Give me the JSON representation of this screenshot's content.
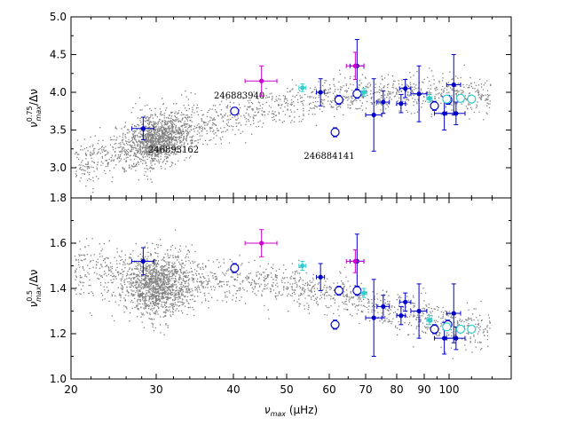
{
  "chart_data": [
    {
      "panel": "top",
      "type": "scatter",
      "title": "",
      "ylabel_main": "ν",
      "ylabel_sup": "0.75",
      "ylabel_sub": "max",
      "ylabel_tail": "/Δν",
      "ylim": [
        2.7,
        5.0
      ],
      "yticks": [
        3.0,
        3.5,
        4.0,
        4.5,
        5.0
      ],
      "ytick_labels": [
        "3.0",
        "3.5",
        "4.0",
        "4.5",
        "5.0"
      ],
      "bottom_label": "1.8",
      "annotations": [
        {
          "text": "246883940",
          "x": 41,
          "y": 3.92
        },
        {
          "text": "246893162",
          "x": 32,
          "y": 3.2
        },
        {
          "text": "246884141",
          "x": 60,
          "y": 3.12
        }
      ],
      "background": {
        "name": "field stars",
        "color": "#808080",
        "x_range": [
          20,
          120
        ],
        "peak_x": 30,
        "curve": [
          [
            20,
            3.05
          ],
          [
            25,
            3.25
          ],
          [
            30,
            3.38
          ],
          [
            35,
            3.55
          ],
          [
            40,
            3.68
          ],
          [
            50,
            3.85
          ],
          [
            60,
            3.95
          ],
          [
            80,
            3.98
          ],
          [
            100,
            4.0
          ],
          [
            115,
            3.95
          ]
        ]
      },
      "series": [
        {
          "name": "blue filled",
          "marker": "filled",
          "color": "#0000cc",
          "points": [
            {
              "x": 28.2,
              "y": 3.52,
              "xerr": 1.5,
              "yerr": 0.15
            },
            {
              "x": 57.8,
              "y": 4.0,
              "xerr": 1.0,
              "yerr": 0.18
            },
            {
              "x": 67.5,
              "y": 4.35,
              "xerr": 2.0,
              "yerr": 0.35
            },
            {
              "x": 72.5,
              "y": 3.7,
              "xerr": 2.5,
              "yerr": 0.48
            },
            {
              "x": 75.5,
              "y": 3.87,
              "xerr": 2.0,
              "yerr": 0.15
            },
            {
              "x": 81.5,
              "y": 3.85,
              "xerr": 1.5,
              "yerr": 0.12
            },
            {
              "x": 83.0,
              "y": 4.05,
              "xerr": 2.0,
              "yerr": 0.12
            },
            {
              "x": 88.0,
              "y": 3.98,
              "xerr": 3.0,
              "yerr": 0.37
            },
            {
              "x": 98.0,
              "y": 3.72,
              "xerr": 4.0,
              "yerr": 0.22
            },
            {
              "x": 102.0,
              "y": 4.1,
              "xerr": 3.0,
              "yerr": 0.4
            },
            {
              "x": 103.0,
              "y": 3.72,
              "xerr": 4.0,
              "yerr": 0.15
            }
          ]
        },
        {
          "name": "blue open",
          "marker": "open",
          "color": "#0000cc",
          "points": [
            {
              "x": 40.2,
              "y": 3.75,
              "xerr": 0.5,
              "yerr": 0.05
            },
            {
              "x": 61.5,
              "y": 3.47,
              "xerr": 0.8,
              "yerr": 0.06
            },
            {
              "x": 62.5,
              "y": 3.9,
              "xerr": 0.8,
              "yerr": 0.06
            },
            {
              "x": 67.5,
              "y": 3.98,
              "xerr": 0.8,
              "yerr": 0.06
            },
            {
              "x": 94.0,
              "y": 3.82,
              "xerr": 1.0,
              "yerr": 0.06
            },
            {
              "x": 99.5,
              "y": 3.9,
              "xerr": 1.0,
              "yerr": 0.06
            }
          ]
        },
        {
          "name": "magenta",
          "marker": "filled",
          "color": "#cc00cc",
          "points": [
            {
              "x": 45.0,
              "y": 4.15,
              "xerr": 3.0,
              "yerr": 0.2
            },
            {
              "x": 67.0,
              "y": 4.35,
              "xerr": 2.5,
              "yerr": 0.18
            }
          ]
        },
        {
          "name": "cyan",
          "marker": "filled",
          "color": "#33cccc",
          "points": [
            {
              "x": 53.5,
              "y": 4.06,
              "xerr": 0.8,
              "yerr": 0.05
            },
            {
              "x": 69.5,
              "y": 4.0,
              "xerr": 0.8,
              "yerr": 0.05
            },
            {
              "x": 92.0,
              "y": 3.92,
              "xerr": 1.0,
              "yerr": 0.05
            }
          ]
        },
        {
          "name": "cyan open",
          "marker": "open",
          "color": "#33cccc",
          "points": [
            {
              "x": 99.0,
              "y": 3.91,
              "xerr": 1.0,
              "yerr": 0.04
            },
            {
              "x": 105.0,
              "y": 3.92,
              "xerr": 1.0,
              "yerr": 0.04
            },
            {
              "x": 110.0,
              "y": 3.91,
              "xerr": 1.0,
              "yerr": 0.04
            }
          ]
        }
      ]
    },
    {
      "panel": "bottom",
      "type": "scatter",
      "title": "",
      "ylabel_main": "ν",
      "ylabel_sup": "0.5",
      "ylabel_sub": "max",
      "ylabel_tail": "/Δν",
      "xlabel_main": "ν",
      "xlabel_sub": "max",
      "xlabel_tail": " (μHz)",
      "xlim": [
        20,
        125
      ],
      "xticks": [
        20,
        30,
        40,
        50,
        60,
        70,
        80,
        90,
        100
      ],
      "xtick_labels": [
        "20",
        "30",
        "40",
        "50",
        "60",
        "70",
        "80",
        "90",
        "100"
      ],
      "ylim": [
        1.0,
        1.8
      ],
      "yticks": [
        1.0,
        1.2,
        1.4,
        1.6,
        1.8
      ],
      "ytick_labels": [
        "1.0",
        "1.2",
        "1.4",
        "1.6",
        "1.8"
      ],
      "background": {
        "name": "field stars",
        "color": "#808080",
        "x_range": [
          20,
          120
        ],
        "peak_x": 30,
        "curve": [
          [
            20,
            1.5
          ],
          [
            25,
            1.45
          ],
          [
            30,
            1.41
          ],
          [
            35,
            1.43
          ],
          [
            40,
            1.44
          ],
          [
            50,
            1.42
          ],
          [
            60,
            1.38
          ],
          [
            80,
            1.3
          ],
          [
            100,
            1.24
          ],
          [
            115,
            1.22
          ]
        ]
      },
      "series": [
        {
          "name": "blue filled",
          "marker": "filled",
          "color": "#0000cc",
          "points": [
            {
              "x": 28.2,
              "y": 1.52,
              "xerr": 1.5,
              "yerr": 0.06
            },
            {
              "x": 57.8,
              "y": 1.45,
              "xerr": 1.0,
              "yerr": 0.06
            },
            {
              "x": 67.5,
              "y": 1.52,
              "xerr": 2.0,
              "yerr": 0.12
            },
            {
              "x": 72.5,
              "y": 1.27,
              "xerr": 2.5,
              "yerr": 0.17
            },
            {
              "x": 75.5,
              "y": 1.32,
              "xerr": 2.0,
              "yerr": 0.05
            },
            {
              "x": 81.5,
              "y": 1.28,
              "xerr": 1.5,
              "yerr": 0.04
            },
            {
              "x": 83.0,
              "y": 1.34,
              "xerr": 2.0,
              "yerr": 0.04
            },
            {
              "x": 88.0,
              "y": 1.3,
              "xerr": 3.0,
              "yerr": 0.12
            },
            {
              "x": 98.0,
              "y": 1.18,
              "xerr": 4.0,
              "yerr": 0.07
            },
            {
              "x": 102.0,
              "y": 1.29,
              "xerr": 3.0,
              "yerr": 0.13
            },
            {
              "x": 103.0,
              "y": 1.18,
              "xerr": 4.0,
              "yerr": 0.05
            }
          ]
        },
        {
          "name": "blue open",
          "marker": "open",
          "color": "#0000cc",
          "points": [
            {
              "x": 40.2,
              "y": 1.49,
              "xerr": 0.5,
              "yerr": 0.02
            },
            {
              "x": 61.5,
              "y": 1.24,
              "xerr": 0.8,
              "yerr": 0.02
            },
            {
              "x": 62.5,
              "y": 1.39,
              "xerr": 0.8,
              "yerr": 0.02
            },
            {
              "x": 67.5,
              "y": 1.39,
              "xerr": 0.8,
              "yerr": 0.02
            },
            {
              "x": 94.0,
              "y": 1.22,
              "xerr": 1.0,
              "yerr": 0.02
            },
            {
              "x": 99.5,
              "y": 1.24,
              "xerr": 1.0,
              "yerr": 0.02
            }
          ]
        },
        {
          "name": "magenta",
          "marker": "filled",
          "color": "#cc00cc",
          "points": [
            {
              "x": 45.0,
              "y": 1.6,
              "xerr": 3.0,
              "yerr": 0.06
            },
            {
              "x": 67.0,
              "y": 1.52,
              "xerr": 2.5,
              "yerr": 0.05
            }
          ]
        },
        {
          "name": "cyan",
          "marker": "filled",
          "color": "#33cccc",
          "points": [
            {
              "x": 53.5,
              "y": 1.5,
              "xerr": 0.8,
              "yerr": 0.02
            },
            {
              "x": 69.5,
              "y": 1.38,
              "xerr": 0.8,
              "yerr": 0.02
            },
            {
              "x": 92.0,
              "y": 1.26,
              "xerr": 1.0,
              "yerr": 0.02
            }
          ]
        },
        {
          "name": "cyan open",
          "marker": "open",
          "color": "#33cccc",
          "points": [
            {
              "x": 99.0,
              "y": 1.23,
              "xerr": 1.0,
              "yerr": 0.015
            },
            {
              "x": 105.0,
              "y": 1.22,
              "xerr": 1.0,
              "yerr": 0.015
            },
            {
              "x": 110.0,
              "y": 1.22,
              "xerr": 1.0,
              "yerr": 0.015
            }
          ]
        }
      ]
    }
  ]
}
